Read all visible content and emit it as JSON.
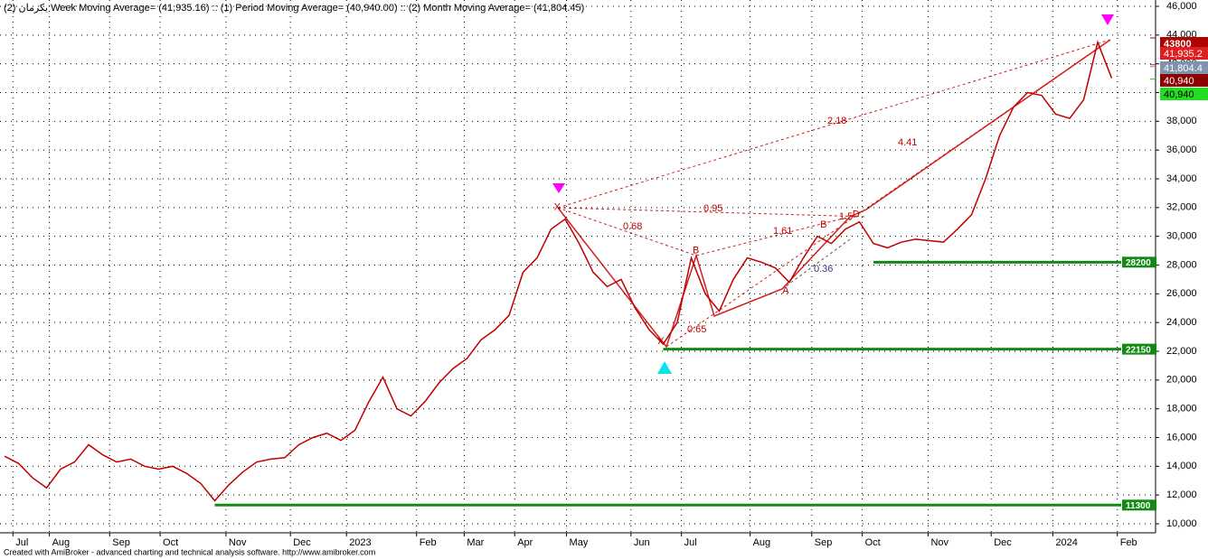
{
  "chart_data": {
    "type": "line",
    "title": "یکرمان (2) Week Moving Average= (41,935.16) :: (1) Period Moving Average= (40,940.00) :: (2) Month Moving Average= (41,804.45)",
    "footer": "Created with AmiBroker - advanced charting and technical analysis software. http://www.amibroker.com",
    "color": "#c00000",
    "values": [
      14700,
      14200,
      13200,
      12500,
      13800,
      14300,
      15500,
      14800,
      14300,
      14500,
      14000,
      13800,
      14000,
      13500,
      12800,
      11600,
      12700,
      13600,
      14300,
      14500,
      14600,
      15500,
      16000,
      16300,
      15800,
      16500,
      18500,
      20200,
      18000,
      17500,
      18500,
      19800,
      20800,
      21500,
      22800,
      23500,
      24500,
      27500,
      28500,
      30500,
      31200,
      29500,
      27500,
      26500,
      27000,
      25000,
      23500,
      22500,
      24000,
      28500,
      26000,
      24800,
      27000,
      28500,
      28200,
      27800,
      26800,
      28500,
      30000,
      29500,
      30500,
      31000,
      29500,
      29200,
      29600,
      29800,
      29700,
      29600,
      30500,
      31500,
      34000,
      37000,
      39000,
      40000,
      39800,
      38500,
      38200,
      39500,
      43500,
      41000
    ],
    "xlim": [
      0,
      80
    ],
    "xticks": [
      {
        "value": 0.6,
        "label": "Jul"
      },
      {
        "value": 3.2,
        "label": "Aug"
      },
      {
        "value": 7.5,
        "label": "Sep"
      },
      {
        "value": 11.1,
        "label": "Oct"
      },
      {
        "value": 15.8,
        "label": "Nov"
      },
      {
        "value": 20.4,
        "label": "Dec"
      },
      {
        "value": 24.4,
        "label": "2023"
      },
      {
        "value": 29.4,
        "label": "Feb"
      },
      {
        "value": 32.8,
        "label": "Mar"
      },
      {
        "value": 36.4,
        "label": "Apr"
      },
      {
        "value": 40.1,
        "label": "May"
      },
      {
        "value": 44.7,
        "label": "Jun"
      },
      {
        "value": 48.3,
        "label": "Jul"
      },
      {
        "value": 53.2,
        "label": "Aug"
      },
      {
        "value": 57.6,
        "label": "Sep"
      },
      {
        "value": 61.2,
        "label": "Oct"
      },
      {
        "value": 65.9,
        "label": "Nov"
      },
      {
        "value": 70.4,
        "label": "Dec"
      },
      {
        "value": 74.8,
        "label": "2024"
      },
      {
        "value": 79.4,
        "label": "Feb"
      }
    ],
    "ylim": [
      10000,
      46000
    ],
    "yticks": [
      {
        "value": 10000,
        "label": "10,000"
      },
      {
        "value": 12000,
        "label": "12,000"
      },
      {
        "value": 14000,
        "label": "14,000"
      },
      {
        "value": 16000,
        "label": "16,000"
      },
      {
        "value": 18000,
        "label": "18,000"
      },
      {
        "value": 20000,
        "label": "20,000"
      },
      {
        "value": 22000,
        "label": "22,000"
      },
      {
        "value": 24000,
        "label": "24,000"
      },
      {
        "value": 26000,
        "label": "26,000"
      },
      {
        "value": 28000,
        "label": "28,000"
      },
      {
        "value": 30000,
        "label": "30,000"
      },
      {
        "value": 32000,
        "label": "32,000"
      },
      {
        "value": 34000,
        "label": "34,000"
      },
      {
        "value": 36000,
        "label": "36,000"
      },
      {
        "value": 38000,
        "label": "38,000"
      },
      {
        "value": 40000,
        "label": "40,000"
      },
      {
        "value": 42000,
        "label": "42,000"
      },
      {
        "value": 44000,
        "label": "44,000"
      },
      {
        "value": 46000,
        "label": "46,000"
      }
    ],
    "grid": true,
    "levels": [
      {
        "value": 28200,
        "start": 62
      },
      {
        "value": 22150,
        "start": 47
      },
      {
        "value": 11300,
        "start": 15
      }
    ],
    "level_color": "#138a13",
    "price_tags": [
      {
        "value": 43800,
        "label": "43800",
        "color": "#b00000"
      },
      {
        "value": 41935.2,
        "label": "41,935.2",
        "color": "#e02020"
      },
      {
        "value": 41804.4,
        "label": "41,804.4",
        "color": "#7f93ad"
      },
      {
        "value": 40940,
        "label": "40,940",
        "color": "#8b0000"
      },
      {
        "value": 40940,
        "label": "40,940",
        "color": "#22dd22"
      }
    ],
    "pattern_labels": [
      {
        "label": "X",
        "x": 39.2,
        "y": 32000
      },
      {
        "label": "X",
        "x": 46.6,
        "y": 22700
      },
      {
        "label": "B",
        "x": 49.1,
        "y": 29000
      },
      {
        "label": "A",
        "x": 55.5,
        "y": 26200
      },
      {
        "label": "B",
        "x": 58.2,
        "y": 30800
      },
      {
        "label": "D",
        "x": 60.5,
        "y": 31500
      }
    ],
    "annotations": [
      "2.18",
      "4.41",
      "0.95",
      "0.68",
      "1.61",
      "1.5",
      "0.36",
      "0.65"
    ]
  }
}
